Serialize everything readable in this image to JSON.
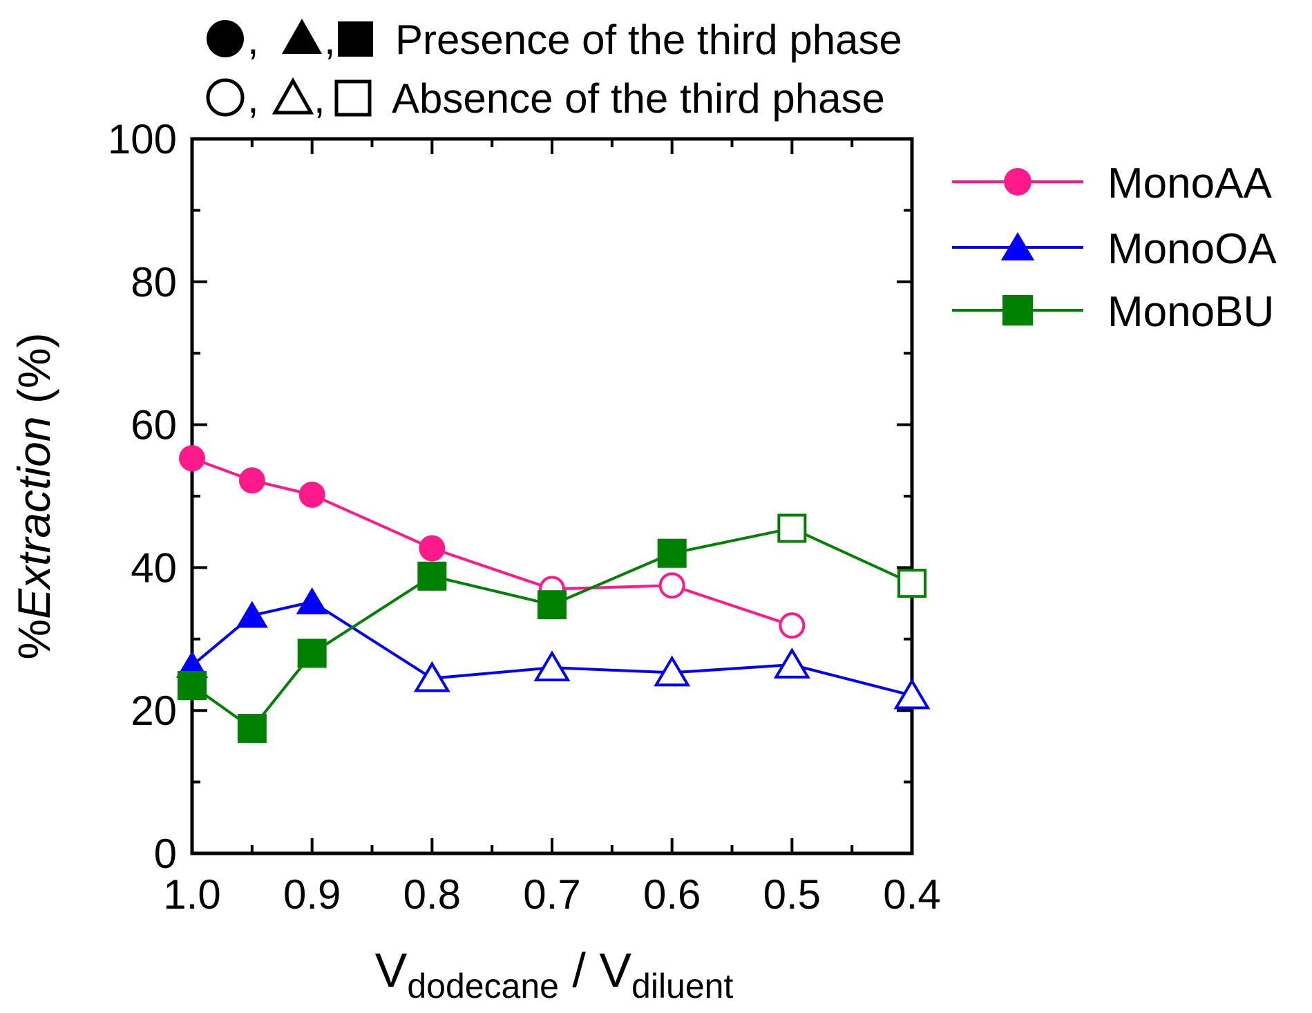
{
  "chart_data": {
    "type": "line",
    "xlabel": {
      "main": "V",
      "sub1": "dodecane",
      "sep": " / V",
      "sub2": "diluent"
    },
    "ylabel": {
      "prefix": "%",
      "italic": "Extraction",
      "suffix": " (%)"
    },
    "x": [
      1.0,
      0.95,
      0.9,
      0.8,
      0.7,
      0.6,
      0.5,
      0.4
    ],
    "xlim": [
      1.0,
      0.4
    ],
    "ylim": [
      0,
      100
    ],
    "xticks": [
      "1.0",
      "0.9",
      "0.8",
      "0.7",
      "0.6",
      "0.5",
      "0.4"
    ],
    "xtick_values": [
      1.0,
      0.9,
      0.8,
      0.7,
      0.6,
      0.5,
      0.4
    ],
    "yticks": [
      "0",
      "20",
      "40",
      "60",
      "80",
      "100"
    ],
    "ytick_values": [
      0,
      20,
      40,
      60,
      80,
      100
    ],
    "legend_position": "right",
    "notes": [
      {
        "symbols": [
          "●",
          "▲",
          "■"
        ],
        "separator": ",",
        "text": "Presence of the third phase"
      },
      {
        "symbols": [
          "○",
          "△",
          "□"
        ],
        "separator": ",",
        "text": "Absence of the third phase"
      }
    ],
    "series": [
      {
        "name": "MonoAA",
        "color": "#FF1A8C",
        "marker": "circle",
        "points": [
          {
            "x": 1.0,
            "y": 55.3,
            "filled": true
          },
          {
            "x": 0.95,
            "y": 52.2,
            "filled": true
          },
          {
            "x": 0.9,
            "y": 50.2,
            "filled": true
          },
          {
            "x": 0.8,
            "y": 42.7,
            "filled": true
          },
          {
            "x": 0.7,
            "y": 37.0,
            "filled": false
          },
          {
            "x": 0.6,
            "y": 37.5,
            "filled": false
          },
          {
            "x": 0.5,
            "y": 31.9,
            "filled": false
          }
        ]
      },
      {
        "name": "MonoOA",
        "color": "#0000FF",
        "marker": "triangle",
        "points": [
          {
            "x": 1.0,
            "y": 26.3,
            "filled": true
          },
          {
            "x": 0.95,
            "y": 33.3,
            "filled": true
          },
          {
            "x": 0.9,
            "y": 35.2,
            "filled": true
          },
          {
            "x": 0.8,
            "y": 24.5,
            "filled": false
          },
          {
            "x": 0.7,
            "y": 26.0,
            "filled": false
          },
          {
            "x": 0.6,
            "y": 25.3,
            "filled": false
          },
          {
            "x": 0.5,
            "y": 26.4,
            "filled": false
          },
          {
            "x": 0.4,
            "y": 22.1,
            "filled": false
          }
        ]
      },
      {
        "name": "MonoBU",
        "color": "#008000",
        "marker": "square",
        "points": [
          {
            "x": 1.0,
            "y": 23.5,
            "filled": true
          },
          {
            "x": 0.95,
            "y": 17.5,
            "filled": true
          },
          {
            "x": 0.9,
            "y": 28.0,
            "filled": true
          },
          {
            "x": 0.8,
            "y": 38.8,
            "filled": true
          },
          {
            "x": 0.7,
            "y": 34.8,
            "filled": true
          },
          {
            "x": 0.6,
            "y": 42.0,
            "filled": true
          },
          {
            "x": 0.5,
            "y": 45.5,
            "filled": false
          },
          {
            "x": 0.4,
            "y": 37.8,
            "filled": false
          }
        ]
      }
    ]
  }
}
